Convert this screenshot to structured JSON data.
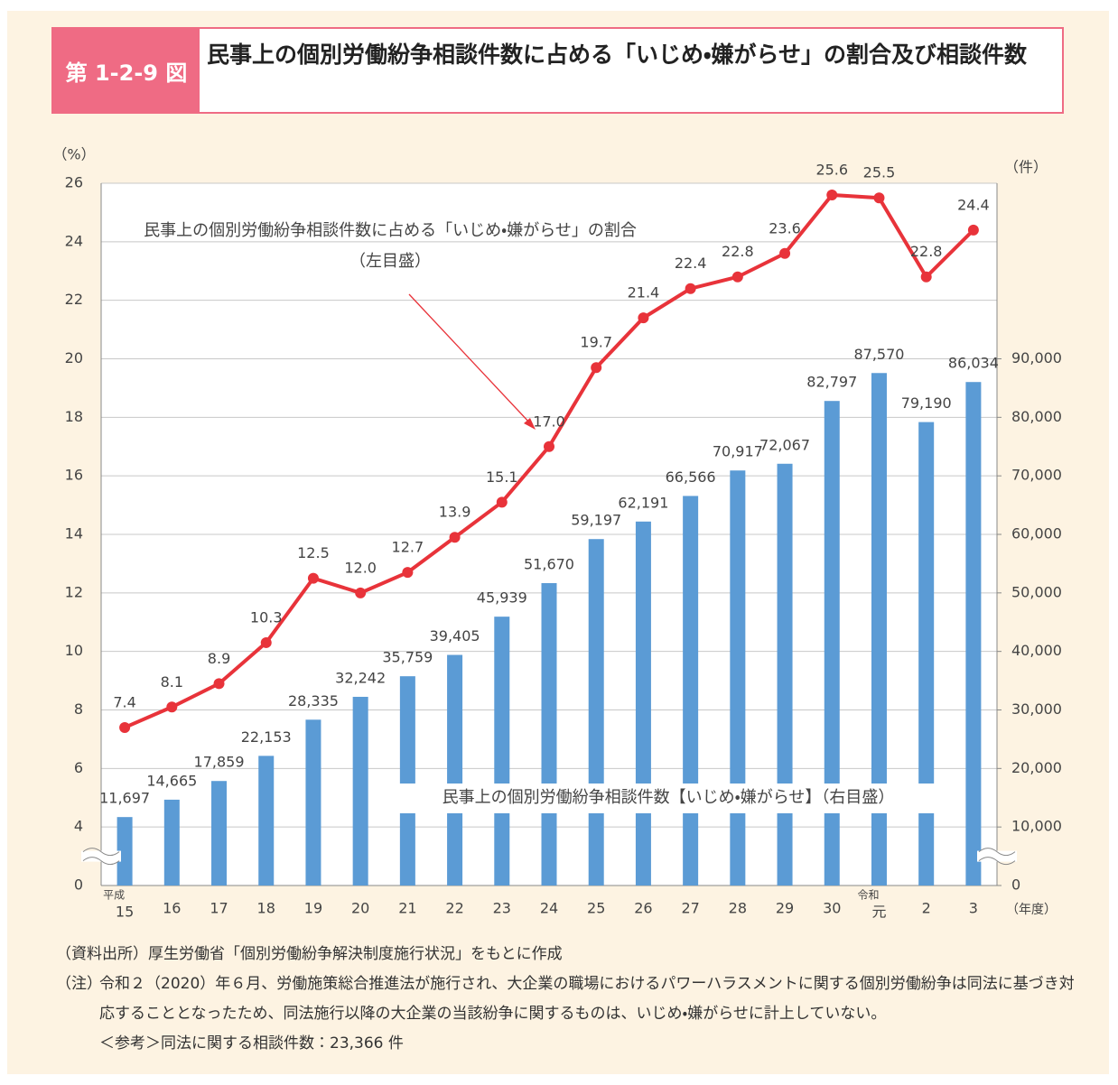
{
  "header": {
    "figure_label": "第 1-2-9 図",
    "title": "民事上の個別労働紛争相談件数に占める「いじめ・嫌がらせ」の割合及び相談件数"
  },
  "chart_data": {
    "type": "combo",
    "y_unit": "（%）",
    "y2_unit": "（件）",
    "x_unit": "（年度）",
    "categories": [
      "15",
      "16",
      "17",
      "18",
      "19",
      "20",
      "21",
      "22",
      "23",
      "24",
      "25",
      "26",
      "27",
      "28",
      "29",
      "30",
      "元",
      "2",
      "3"
    ],
    "category_eras": [
      "平成",
      null,
      null,
      null,
      null,
      null,
      null,
      null,
      null,
      null,
      null,
      null,
      null,
      null,
      null,
      null,
      "令和",
      null,
      null
    ],
    "ylim": [
      0,
      26
    ],
    "yticks": [
      0,
      4,
      6,
      8,
      10,
      12,
      14,
      16,
      18,
      20,
      22,
      24,
      26
    ],
    "y2lim": [
      0,
      120000
    ],
    "y2ticks": [
      0,
      {
        "value": 10000,
        "label": "10,000"
      },
      {
        "value": 20000,
        "label": "20,000"
      },
      {
        "value": 30000,
        "label": "30,000"
      },
      {
        "value": 40000,
        "label": "40,000"
      },
      {
        "value": 50000,
        "label": "50,000"
      },
      {
        "value": 60000,
        "label": "60,000"
      },
      {
        "value": 70000,
        "label": "70,000"
      },
      {
        "value": 80000,
        "label": "80,000"
      },
      {
        "value": 90000,
        "label": "90,000"
      }
    ],
    "grid": true,
    "series": [
      {
        "name": "民事上の個別労働紛争相談件数【いじめ・嫌がらせ】（右目盛）",
        "type": "bar",
        "axis": "y2",
        "color": "#5b9bd5",
        "values": [
          11697,
          14665,
          17859,
          22153,
          28335,
          32242,
          35759,
          39405,
          45939,
          51670,
          59197,
          62191,
          66566,
          70917,
          72067,
          82797,
          87570,
          79190,
          86034
        ],
        "value_labels": [
          "11,697",
          "14,665",
          "17,859",
          "22,153",
          "28,335",
          "32,242",
          "35,759",
          "39,405",
          "45,939",
          "51,670",
          "59,197",
          "62,191",
          "66,566",
          "70,917",
          "72,067",
          "82,797",
          "87,570",
          "79,190",
          "86,034"
        ]
      },
      {
        "name": "民事上の個別労働紛争相談件数に占める「いじめ・嫌がらせ」の割合",
        "axis_note": "（左目盛）",
        "type": "line",
        "axis": "y",
        "color": "#e8333a",
        "values": [
          7.4,
          8.1,
          8.9,
          10.3,
          12.5,
          12.0,
          12.7,
          13.9,
          15.1,
          17.0,
          19.7,
          21.4,
          22.4,
          22.8,
          23.6,
          25.6,
          25.5,
          22.8,
          24.4
        ],
        "value_labels": [
          "7.4",
          "8.1",
          "8.9",
          "10.3",
          "12.5",
          "12.0",
          "12.7",
          "13.9",
          "15.1",
          "17.0",
          "19.7",
          "21.4",
          "22.4",
          "22.8",
          "23.6",
          "25.6",
          "25.5",
          "22.8",
          "24.4"
        ]
      }
    ]
  },
  "notes": {
    "source": "（資料出所）厚生労働省「個別労働紛争解決制度施行状況」をもとに作成",
    "note_label": "（注）",
    "note": "令和２（2020）年６月、労働施策総合推進法が施行され、大企業の職場におけるパワーハラスメントに関する個別労働紛争は同法に基づき対応することとなったため、同法施行以降の大企業の当該紛争に関するものは、いじめ・嫌がらせに計上していない。",
    "reference": "＜参考＞同法に関する相談件数：23,366 件"
  }
}
